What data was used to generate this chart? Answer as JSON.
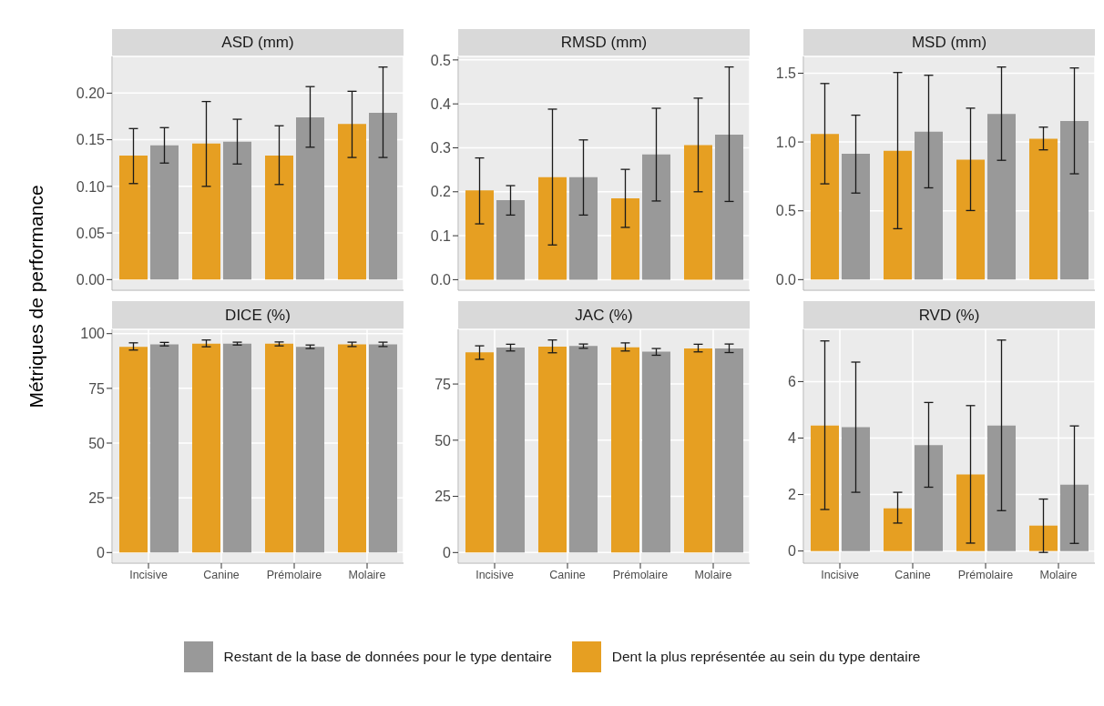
{
  "chart_data": [
    {
      "type": "bar",
      "title": "ASD (mm)",
      "ylabel": "Métriques de performance",
      "legend": "bottom",
      "categories": [
        null,
        null,
        null,
        null
      ],
      "tick_labels": "y",
      "grid": true,
      "ylim": [
        -0.0114,
        0.2394
      ],
      "yticks": [
        {
          "value": 0,
          "label": "0.00"
        },
        {
          "value": 0.05,
          "label": "0.05"
        },
        {
          "value": 0.1,
          "label": "0.10"
        },
        {
          "value": 0.15,
          "label": "0.15"
        },
        {
          "value": 0.2,
          "label": "0.20"
        }
      ],
      "series": [
        {
          "name": "Dent la plus représentée au sein du type dentaire",
          "color": "#e69f22",
          "values": [
            0.133,
            0.146,
            0.133,
            0.167
          ],
          "errors": [
            [
              0.103,
              0.162
            ],
            [
              0.1,
              0.191
            ],
            [
              0.102,
              0.165
            ],
            [
              0.131,
              0.202
            ]
          ]
        },
        {
          "name": "Restant de la base de données pour le type dentaire",
          "color": "#999999",
          "values": [
            0.144,
            0.148,
            0.174,
            0.179
          ],
          "errors": [
            [
              0.125,
              0.163
            ],
            [
              0.124,
              0.172
            ],
            [
              0.142,
              0.207
            ],
            [
              0.131,
              0.228
            ]
          ]
        }
      ]
    },
    {
      "type": "bar",
      "title": "RMSD (mm)",
      "categories": [
        null,
        null,
        null,
        null
      ],
      "tick_labels": "y",
      "grid": true,
      "ylim": [
        -0.024,
        0.508
      ],
      "yticks": [
        {
          "value": 0,
          "label": "0.0"
        },
        0.1,
        0.2,
        0.3,
        0.4,
        0.5
      ],
      "series": [
        {
          "color": "#e69f22",
          "values": [
            0.203,
            0.233,
            0.185,
            0.306
          ],
          "errors": [
            [
              0.127,
              0.277
            ],
            [
              0.079,
              0.388
            ],
            [
              0.119,
              0.251
            ],
            [
              0.2,
              0.413
            ]
          ]
        },
        {
          "color": "#999999",
          "values": [
            0.181,
            0.233,
            0.285,
            0.33
          ],
          "errors": [
            [
              0.147,
              0.214
            ],
            [
              0.147,
              0.318
            ],
            [
              0.179,
              0.39
            ],
            [
              0.178,
              0.484
            ]
          ]
        }
      ]
    },
    {
      "type": "bar",
      "title": "MSD (mm)",
      "categories": [
        null,
        null,
        null,
        null
      ],
      "tick_labels": "y",
      "grid": true,
      "ylim": [
        -0.077,
        1.622
      ],
      "yticks": [
        {
          "value": 0,
          "label": "0.0"
        },
        0.5,
        {
          "value": 1,
          "label": "1.0"
        },
        1.5
      ],
      "series": [
        {
          "color": "#e69f22",
          "values": [
            1.059,
            0.936,
            0.872,
            1.023
          ],
          "errors": [
            [
              0.696,
              1.425
            ],
            [
              0.37,
              1.505
            ],
            [
              0.502,
              1.246
            ],
            [
              0.943,
              1.108
            ]
          ]
        },
        {
          "color": "#999999",
          "values": [
            0.914,
            1.075,
            1.204,
            1.153
          ],
          "errors": [
            [
              0.629,
              1.195
            ],
            [
              0.667,
              1.485
            ],
            [
              0.867,
              1.545
            ],
            [
              0.769,
              1.538
            ]
          ]
        }
      ]
    },
    {
      "type": "bar",
      "title": "DICE (%)",
      "categories": [
        "Incisive",
        "Canine",
        "Prémolaire",
        "Molaire"
      ],
      "grid": true,
      "ylim": [
        -4.86,
        101.96
      ],
      "yticks": [
        0,
        25,
        50,
        75,
        100
      ],
      "series": [
        {
          "color": "#e69f22",
          "values": [
            94.0,
            95.4,
            95.4,
            95.1
          ],
          "errors": [
            [
              92.5,
              95.8
            ],
            [
              94.0,
              97.1
            ],
            [
              94.4,
              96.2
            ],
            [
              94.1,
              96.1
            ]
          ]
        },
        {
          "color": "#999999",
          "values": [
            95.1,
            95.4,
            94.0,
            95.1
          ],
          "errors": [
            [
              94.4,
              96.0
            ],
            [
              94.8,
              96.1
            ],
            [
              93.2,
              94.8
            ],
            [
              94.1,
              96.1
            ]
          ]
        }
      ]
    },
    {
      "type": "bar",
      "title": "JAC (%)",
      "categories": [
        "Incisive",
        "Canine",
        "Prémolaire",
        "Molaire"
      ],
      "grid": true,
      "ylim": [
        -4.73,
        99.33
      ],
      "yticks": [
        0,
        25,
        50,
        75
      ],
      "series": [
        {
          "color": "#e69f22",
          "values": [
            89.1,
            91.6,
            91.3,
            90.8
          ],
          "errors": [
            [
              86.0,
              92.0
            ],
            [
              88.9,
              94.6
            ],
            [
              89.7,
              93.3
            ],
            [
              89.3,
              92.7
            ]
          ]
        },
        {
          "color": "#999999",
          "values": [
            91.2,
            91.9,
            89.4,
            90.8
          ],
          "errors": [
            [
              89.7,
              92.7
            ],
            [
              90.9,
              92.8
            ],
            [
              87.8,
              90.8
            ],
            [
              89.0,
              92.8
            ]
          ]
        }
      ]
    },
    {
      "type": "bar",
      "title": "RVD (%)",
      "categories": [
        "Incisive",
        "Canine",
        "Prémolaire",
        "Molaire"
      ],
      "grid": true,
      "ylim": [
        -0.43,
        7.85
      ],
      "yticks": [
        0,
        2,
        4,
        6
      ],
      "series": [
        {
          "color": "#e69f22",
          "values": [
            4.44,
            1.51,
            2.71,
            0.9
          ],
          "errors": [
            [
              1.47,
              7.44
            ],
            [
              0.99,
              2.08
            ],
            [
              0.28,
              5.15
            ],
            [
              -0.05,
              1.84
            ]
          ]
        },
        {
          "color": "#999999",
          "values": [
            4.39,
            3.75,
            4.44,
            2.35
          ],
          "errors": [
            [
              2.08,
              6.69
            ],
            [
              2.26,
              5.26
            ],
            [
              1.43,
              7.47
            ],
            [
              0.27,
              4.43
            ]
          ]
        }
      ]
    }
  ]
}
